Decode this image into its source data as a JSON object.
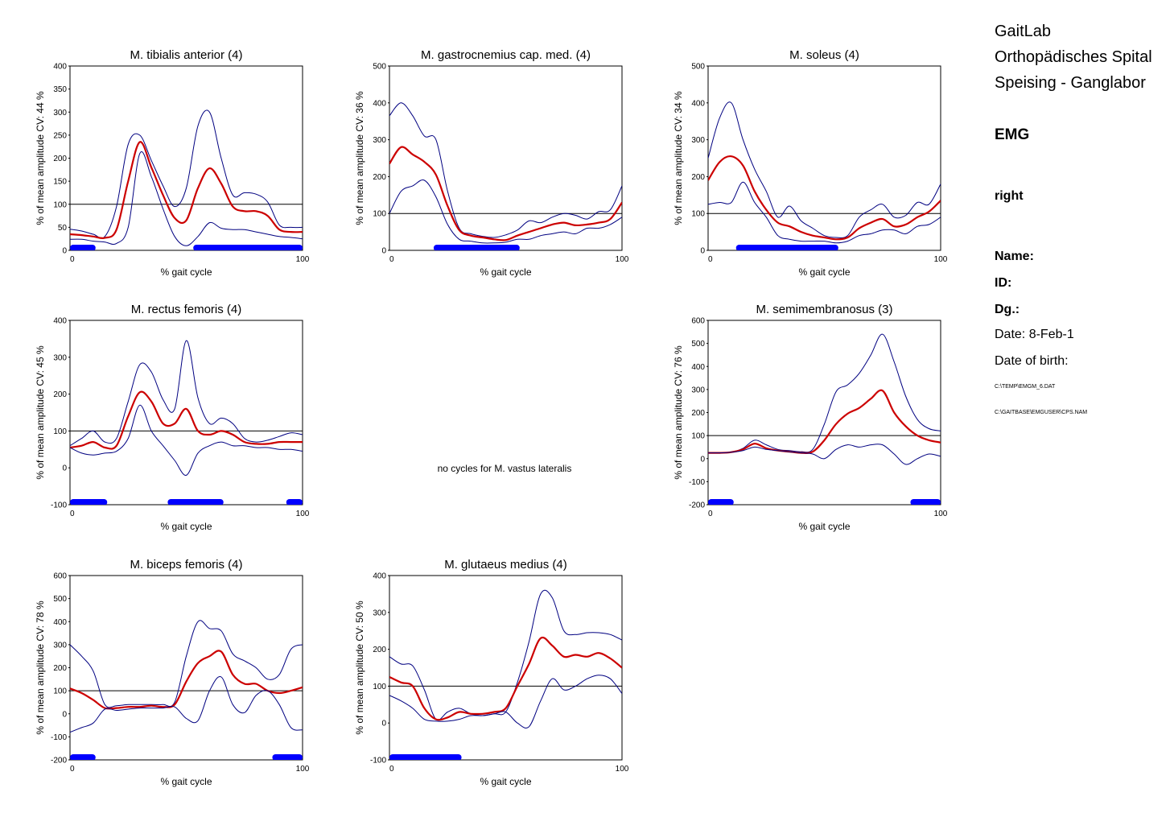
{
  "info": {
    "lab_line1": "GaitLab",
    "lab_line2": "Orthopädisches Spital",
    "lab_line3": "Speising - Ganglabor",
    "section": "EMG",
    "side": "right",
    "name_label": "Name:",
    "id_label": "ID:",
    "dg_label": "Dg.:",
    "date_label": "Date:",
    "date_value": "8-Feb-1",
    "dob_label": "Date of birth:",
    "file1": "C:\\TEMP\\EMGM_6.DAT",
    "file2": "C:\\GAITBASE\\EMGUSER\\CPS.NAM"
  },
  "colors": {
    "mean": "#cc0000",
    "band": "#000080",
    "onoff": "#0000ff",
    "reference": "#000000"
  },
  "chart_data": [
    {
      "type": "line",
      "title": "M. tibialis anterior (4)",
      "xlabel": "% gait cycle",
      "ylabel": "% of mean amplitude  CV: 44 %",
      "xlim": [
        0,
        100
      ],
      "ylim": [
        0,
        400
      ],
      "yticks": [
        0,
        50,
        100,
        150,
        200,
        250,
        300,
        350,
        400
      ],
      "reference_line": 100,
      "x": [
        0,
        5,
        10,
        15,
        20,
        25,
        30,
        35,
        40,
        45,
        50,
        55,
        60,
        65,
        70,
        75,
        80,
        85,
        90,
        95,
        100
      ],
      "series": [
        {
          "values": [
            46,
            42,
            35,
            30,
            95,
            230,
            250,
            195,
            140,
            95,
            135,
            270,
            300,
            200,
            120,
            125,
            122,
            105,
            55,
            50,
            50
          ]
        },
        {
          "values": [
            35,
            33,
            30,
            27,
            45,
            150,
            235,
            180,
            120,
            70,
            65,
            135,
            178,
            145,
            95,
            85,
            85,
            75,
            45,
            40,
            40
          ]
        },
        {
          "values": [
            24,
            24,
            20,
            18,
            15,
            50,
            210,
            160,
            90,
            30,
            10,
            30,
            60,
            48,
            45,
            45,
            40,
            35,
            30,
            28,
            25
          ]
        }
      ],
      "activity": [
        [
          0,
          11
        ],
        [
          53,
          100
        ]
      ]
    },
    {
      "type": "line",
      "title": "M. gastrocnemius cap. med. (4)",
      "xlabel": "% gait cycle",
      "ylabel": "% of mean amplitude  CV: 36 %",
      "xlim": [
        0,
        100
      ],
      "ylim": [
        0,
        500
      ],
      "yticks": [
        0,
        100,
        200,
        300,
        400,
        500
      ],
      "reference_line": 100,
      "x": [
        0,
        5,
        10,
        15,
        20,
        25,
        30,
        35,
        40,
        45,
        50,
        55,
        60,
        65,
        70,
        75,
        80,
        85,
        90,
        95,
        100
      ],
      "series": [
        {
          "values": [
            365,
            400,
            365,
            310,
            300,
            160,
            60,
            45,
            38,
            35,
            42,
            55,
            80,
            75,
            90,
            100,
            95,
            85,
            105,
            110,
            175
          ]
        },
        {
          "values": [
            235,
            280,
            260,
            240,
            205,
            120,
            55,
            40,
            35,
            30,
            28,
            40,
            50,
            60,
            70,
            75,
            68,
            70,
            75,
            85,
            130
          ]
        },
        {
          "values": [
            100,
            160,
            175,
            190,
            145,
            70,
            30,
            25,
            20,
            20,
            22,
            30,
            30,
            40,
            45,
            50,
            45,
            60,
            60,
            70,
            90
          ]
        }
      ],
      "activity": [
        [
          19,
          56
        ]
      ]
    },
    {
      "type": "line",
      "title": "M. soleus (4)",
      "xlabel": "% gait cycle",
      "ylabel": "% of mean amplitude  CV: 34 %",
      "xlim": [
        0,
        100
      ],
      "ylim": [
        0,
        500
      ],
      "yticks": [
        0,
        100,
        200,
        300,
        400,
        500
      ],
      "reference_line": 100,
      "x": [
        0,
        5,
        10,
        15,
        20,
        25,
        30,
        35,
        40,
        45,
        50,
        55,
        60,
        65,
        70,
        75,
        80,
        85,
        90,
        95,
        100
      ],
      "series": [
        {
          "values": [
            250,
            360,
            400,
            300,
            220,
            160,
            90,
            120,
            80,
            60,
            40,
            35,
            40,
            90,
            110,
            125,
            90,
            95,
            130,
            125,
            180
          ]
        },
        {
          "values": [
            190,
            240,
            255,
            230,
            160,
            110,
            75,
            65,
            50,
            40,
            35,
            30,
            35,
            60,
            75,
            85,
            65,
            70,
            90,
            105,
            135
          ]
        },
        {
          "values": [
            125,
            130,
            130,
            185,
            130,
            90,
            40,
            30,
            25,
            25,
            25,
            20,
            25,
            40,
            45,
            55,
            55,
            45,
            65,
            70,
            90
          ]
        }
      ],
      "activity": [
        [
          12,
          56
        ]
      ]
    },
    {
      "type": "line",
      "title": "M. rectus femoris (4)",
      "xlabel": "% gait cycle",
      "ylabel": "% of mean amplitude  CV: 45 %",
      "xlim": [
        0,
        100
      ],
      "ylim": [
        -100,
        400
      ],
      "yticks": [
        -100,
        0,
        100,
        200,
        300,
        400
      ],
      "reference_line": 100,
      "x": [
        0,
        5,
        10,
        15,
        20,
        25,
        30,
        35,
        40,
        45,
        50,
        55,
        60,
        65,
        70,
        75,
        80,
        85,
        90,
        95,
        100
      ],
      "series": [
        {
          "values": [
            60,
            80,
            100,
            70,
            80,
            180,
            280,
            260,
            185,
            160,
            345,
            190,
            120,
            135,
            120,
            80,
            70,
            75,
            85,
            95,
            90
          ]
        },
        {
          "values": [
            55,
            60,
            70,
            55,
            60,
            140,
            205,
            180,
            120,
            120,
            160,
            100,
            90,
            100,
            90,
            70,
            65,
            65,
            70,
            70,
            70
          ]
        },
        {
          "values": [
            55,
            40,
            35,
            40,
            45,
            80,
            170,
            100,
            60,
            20,
            -20,
            40,
            60,
            70,
            60,
            60,
            55,
            55,
            50,
            50,
            45
          ]
        }
      ],
      "activity": [
        [
          0,
          16
        ],
        [
          42,
          66
        ],
        [
          93,
          100
        ]
      ]
    },
    {
      "type": "line",
      "title": "M. semimembranosus (3)",
      "xlabel": "% gait cycle",
      "ylabel": "% of mean amplitude  CV: 76 %",
      "xlim": [
        0,
        100
      ],
      "ylim": [
        -200,
        600
      ],
      "yticks": [
        -200,
        -100,
        0,
        100,
        200,
        300,
        400,
        500,
        600
      ],
      "reference_line": 100,
      "x": [
        0,
        5,
        10,
        15,
        20,
        25,
        30,
        35,
        40,
        45,
        50,
        55,
        60,
        65,
        70,
        75,
        80,
        85,
        90,
        95,
        100
      ],
      "series": [
        {
          "values": [
            25,
            25,
            28,
            45,
            80,
            60,
            40,
            35,
            30,
            40,
            150,
            290,
            320,
            370,
            450,
            540,
            420,
            270,
            170,
            130,
            120
          ]
        },
        {
          "values": [
            25,
            25,
            28,
            40,
            65,
            45,
            35,
            30,
            25,
            30,
            80,
            150,
            195,
            220,
            260,
            295,
            200,
            140,
            100,
            80,
            70
          ]
        },
        {
          "values": [
            25,
            25,
            28,
            35,
            50,
            40,
            35,
            30,
            25,
            20,
            0,
            40,
            60,
            50,
            60,
            60,
            20,
            -25,
            0,
            20,
            10
          ]
        }
      ],
      "activity": [
        [
          0,
          11
        ],
        [
          87,
          100
        ]
      ]
    },
    {
      "type": "line",
      "title": "M. biceps femoris (4)",
      "xlabel": "% gait cycle",
      "ylabel": "% of mean amplitude  CV: 78 %",
      "xlim": [
        0,
        100
      ],
      "ylim": [
        -200,
        600
      ],
      "yticks": [
        -200,
        -100,
        0,
        100,
        200,
        300,
        400,
        500,
        600
      ],
      "reference_line": 100,
      "x": [
        0,
        5,
        10,
        15,
        20,
        25,
        30,
        35,
        40,
        45,
        50,
        55,
        60,
        65,
        70,
        75,
        80,
        85,
        90,
        95,
        100
      ],
      "series": [
        {
          "values": [
            300,
            250,
            185,
            40,
            35,
            40,
            40,
            40,
            40,
            50,
            250,
            400,
            370,
            360,
            260,
            230,
            200,
            150,
            170,
            280,
            300
          ]
        },
        {
          "values": [
            110,
            90,
            60,
            25,
            25,
            30,
            30,
            35,
            30,
            40,
            140,
            220,
            250,
            270,
            170,
            130,
            130,
            100,
            90,
            100,
            115
          ]
        },
        {
          "values": [
            -80,
            -60,
            -40,
            20,
            15,
            20,
            25,
            25,
            25,
            30,
            -20,
            -30,
            100,
            160,
            40,
            5,
            80,
            100,
            40,
            -60,
            -70
          ]
        }
      ],
      "activity": [
        [
          0,
          11
        ],
        [
          87,
          100
        ]
      ]
    },
    {
      "type": "line",
      "title": "M. glutaeus medius (4)",
      "xlabel": "% gait cycle",
      "ylabel": "% of mean amplitude  CV: 50 %",
      "xlim": [
        0,
        100
      ],
      "ylim": [
        -100,
        400
      ],
      "yticks": [
        -100,
        0,
        100,
        200,
        300,
        400
      ],
      "reference_line": 100,
      "x": [
        0,
        5,
        10,
        15,
        20,
        25,
        30,
        35,
        40,
        45,
        50,
        55,
        60,
        65,
        70,
        75,
        80,
        85,
        90,
        95,
        100
      ],
      "series": [
        {
          "values": [
            180,
            160,
            155,
            90,
            10,
            30,
            40,
            25,
            20,
            25,
            30,
            110,
            220,
            350,
            340,
            250,
            240,
            245,
            245,
            240,
            225
          ]
        },
        {
          "values": [
            125,
            110,
            100,
            40,
            10,
            15,
            30,
            25,
            25,
            30,
            40,
            100,
            160,
            230,
            210,
            180,
            185,
            180,
            190,
            175,
            150
          ]
        },
        {
          "values": [
            75,
            60,
            40,
            10,
            5,
            5,
            10,
            20,
            20,
            25,
            30,
            0,
            -10,
            60,
            120,
            90,
            100,
            120,
            130,
            120,
            80
          ]
        }
      ],
      "activity": [
        [
          0,
          31
        ]
      ]
    }
  ],
  "empty_panel": {
    "message": "no cycles for M. vastus lateralis"
  }
}
